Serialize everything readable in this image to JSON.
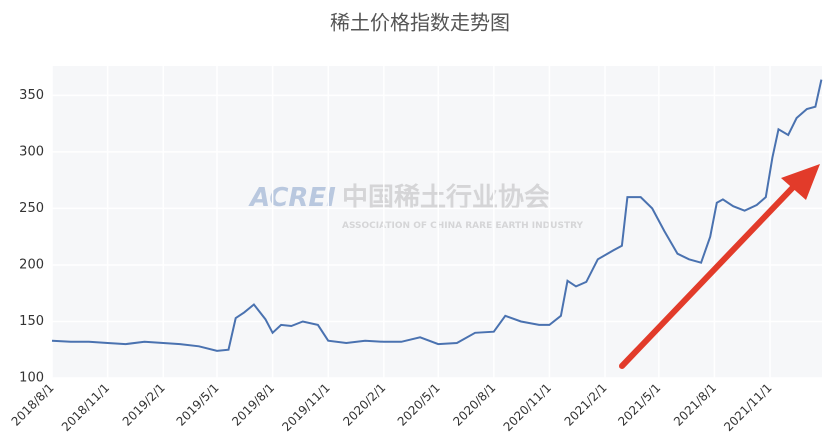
{
  "chart_data": {
    "type": "line",
    "title": "稀土价格指数走势图",
    "watermark": {
      "logo": "ACREI",
      "name": "中国稀土行业协会",
      "subname": "ASSOCIATION OF CHINA RARE EARTH INDUSTRY"
    },
    "x": [
      "2018/8/1",
      "2018/9/1",
      "2018/10/1",
      "2018/11/1",
      "2018/12/1",
      "2019/1/1",
      "2019/2/1",
      "2019/3/1",
      "2019/4/1",
      "2019/5/1",
      "2019/5/20",
      "2019/6/1",
      "2019/6/15",
      "2019/7/1",
      "2019/7/20",
      "2019/8/1",
      "2019/8/15",
      "2019/9/1",
      "2019/9/20",
      "2019/10/15",
      "2019/11/1",
      "2019/12/1",
      "2020/1/1",
      "2020/2/1",
      "2020/3/1",
      "2020/4/1",
      "2020/5/1",
      "2020/6/1",
      "2020/7/1",
      "2020/8/1",
      "2020/8/20",
      "2020/9/15",
      "2020/10/15",
      "2020/11/1",
      "2020/11/20",
      "2020/12/1",
      "2020/12/15",
      "2021/1/1",
      "2021/1/20",
      "2021/2/15",
      "2021/3/1",
      "2021/3/10",
      "2021/4/1",
      "2021/4/20",
      "2021/5/10",
      "2021/6/1",
      "2021/6/20",
      "2021/7/10",
      "2021/7/25",
      "2021/8/5",
      "2021/8/15",
      "2021/9/1",
      "2021/9/20",
      "2021/10/10",
      "2021/10/25",
      "2021/11/5",
      "2021/11/15",
      "2021/12/1",
      "2021/12/15",
      "2022/1/1",
      "2022/1/15",
      "2022/1/25"
    ],
    "series": [
      {
        "color": "#4a72b0",
        "values": [
          133,
          132,
          132,
          131,
          130,
          132,
          131,
          130,
          128,
          124,
          125,
          153,
          158,
          165,
          152,
          140,
          147,
          146,
          150,
          147,
          133,
          131,
          133,
          132,
          132,
          136,
          130,
          131,
          140,
          141,
          155,
          150,
          147,
          147,
          155,
          186,
          181,
          185,
          205,
          213,
          217,
          260,
          260,
          250,
          230,
          210,
          205,
          202,
          225,
          255,
          258,
          252,
          248,
          253,
          260,
          295,
          320,
          315,
          330,
          338,
          340,
          364
        ]
      }
    ],
    "xlim": [
      "2018/8/1",
      "2022/1/26"
    ],
    "xticks": [
      "2018/8/1",
      "2018/11/1",
      "2019/2/1",
      "2019/5/1",
      "2019/8/1",
      "2019/11/1",
      "2020/2/1",
      "2020/5/1",
      "2020/8/1",
      "2020/11/1",
      "2021/2/1",
      "2021/5/1",
      "2021/8/1",
      "2021/11/1"
    ],
    "ylim": [
      100,
      376
    ],
    "yticks": [
      100,
      150,
      200,
      250,
      300,
      350
    ],
    "grid": true
  }
}
